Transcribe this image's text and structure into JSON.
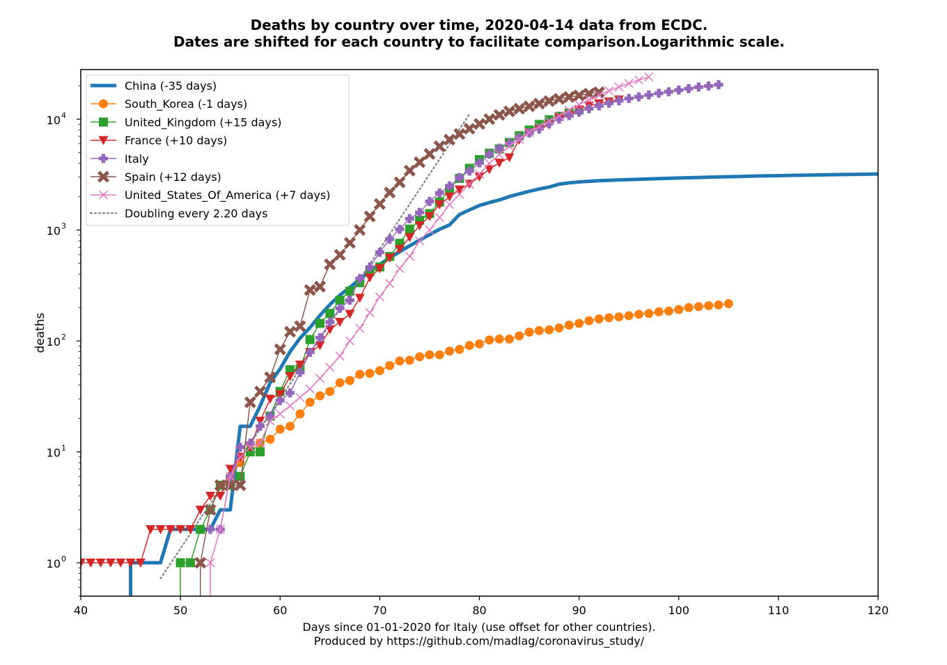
{
  "chart_data": {
    "type": "line",
    "title": "Deaths by country over time, 2020-04-14 data from ECDC.",
    "subtitle": "Dates are shifted for each country to facilitate comparison.Logarithmic scale.",
    "xlabel": "Days since 01-01-2020 for Italy (use offset for other countries).",
    "xlabel_2": "Produced by https://github.com/madlag/coronavirus_study/",
    "ylabel": "deaths",
    "xlim": [
      40,
      120
    ],
    "ylim": [
      0.5,
      28000
    ],
    "yscale": "log",
    "grid": false,
    "legend_position": "upper-left",
    "x_ticks": [
      40,
      50,
      60,
      70,
      80,
      90,
      100,
      110,
      120
    ],
    "y_ticks": [
      {
        "base": "10",
        "exp": "0",
        "value": 1
      },
      {
        "base": "10",
        "exp": "1",
        "value": 10
      },
      {
        "base": "10",
        "exp": "2",
        "value": 100
      },
      {
        "base": "10",
        "exp": "3",
        "value": 1000
      },
      {
        "base": "10",
        "exp": "4",
        "value": 10000
      }
    ],
    "series": [
      {
        "name": "China (-35 days)",
        "color": "#1f77b4",
        "marker": "none",
        "linewidth": 5,
        "x": [
          45,
          45,
          48,
          49,
          53,
          54,
          55,
          56,
          57,
          58,
          59,
          60,
          61,
          62,
          63,
          64,
          65,
          66,
          67,
          68,
          69,
          70,
          71,
          72,
          73,
          74,
          75,
          76,
          77,
          78,
          79,
          80,
          81,
          82,
          83,
          84,
          85,
          86,
          87,
          88,
          89,
          90,
          92,
          94,
          96,
          98,
          100,
          102,
          104,
          106,
          108,
          110,
          112,
          114,
          116,
          118,
          120
        ],
        "y": [
          0.4,
          1,
          1,
          2,
          2,
          3,
          3,
          17,
          17,
          26,
          42,
          56,
          80,
          106,
          132,
          170,
          213,
          259,
          304,
          361,
          425,
          490,
          562,
          637,
          722,
          811,
          908,
          1016,
          1113,
          1380,
          1520,
          1665,
          1770,
          1868,
          2004,
          2118,
          2236,
          2345,
          2442,
          2592,
          2663,
          2715,
          2788,
          2835,
          2870,
          2912,
          2946,
          2981,
          3013,
          3042,
          3070,
          3094,
          3120,
          3140,
          3160,
          3180,
          3200
        ]
      },
      {
        "name": "South_Korea (-1 days)",
        "color": "#ff7f0e",
        "marker": "circle",
        "x": [
          55,
          56,
          57,
          58,
          59,
          60,
          61,
          62,
          63,
          64,
          65,
          66,
          67,
          68,
          69,
          70,
          71,
          72,
          73,
          74,
          75,
          76,
          77,
          78,
          79,
          80,
          81,
          82,
          83,
          84,
          85,
          86,
          87,
          88,
          89,
          90,
          91,
          92,
          93,
          94,
          95,
          96,
          97,
          98,
          99,
          100,
          101,
          102,
          103,
          104,
          105
        ],
        "y": [
          6,
          8,
          10,
          12,
          13,
          16,
          17,
          22,
          28,
          32,
          35,
          42,
          44,
          50,
          51,
          54,
          60,
          66,
          67,
          72,
          75,
          75,
          81,
          84,
          91,
          94,
          102,
          104,
          104,
          111,
          120,
          124,
          126,
          131,
          139,
          144,
          152,
          158,
          162,
          165,
          169,
          174,
          177,
          183,
          186,
          192,
          200,
          204,
          208,
          211,
          217
        ]
      },
      {
        "name": "United_Kingdom (+15 days)",
        "color": "#2ca02c",
        "marker": "square",
        "x": [
          50,
          50,
          51,
          52,
          53,
          54,
          55,
          56,
          57,
          58,
          59,
          60,
          61,
          62,
          63,
          64,
          65,
          66,
          67,
          68,
          69,
          70,
          71,
          72,
          73,
          74,
          75,
          76,
          77,
          78,
          79,
          80,
          81,
          82,
          83,
          84,
          85,
          86,
          87,
          88,
          89,
          90
        ],
        "y": [
          0.4,
          1,
          1,
          2,
          3,
          5,
          5,
          6,
          10,
          10,
          21,
          35,
          55,
          56,
          103,
          144,
          177,
          233,
          281,
          335,
          422,
          465,
          578,
          759,
          1019,
          1228,
          1408,
          1789,
          2352,
          2921,
          3605,
          4313,
          4934,
          5373,
          6159,
          7097,
          7978,
          8958,
          9875,
          10612,
          11329,
          12107
        ]
      },
      {
        "name": "France (+10 days)",
        "color": "#d62728",
        "marker": "triangle-down",
        "x": [
          40,
          41,
          42,
          43,
          44,
          45,
          46,
          47,
          48,
          49,
          50,
          51,
          52,
          53,
          54,
          55,
          56,
          57,
          58,
          59,
          60,
          61,
          62,
          63,
          64,
          65,
          66,
          67,
          68,
          69,
          70,
          71,
          72,
          73,
          74,
          75,
          76,
          77,
          78,
          79,
          80,
          81,
          82,
          83,
          84,
          85,
          86,
          87,
          88,
          89,
          90,
          91,
          92,
          93,
          94
        ],
        "y": [
          1,
          1,
          1,
          1,
          1,
          1,
          1,
          2,
          2,
          2,
          2,
          2,
          3,
          4,
          4,
          7,
          9,
          11,
          19,
          30,
          33,
          48,
          61,
          79,
          91,
          127,
          148,
          175,
          244,
          372,
          450,
          562,
          674,
          860,
          1100,
          1331,
          1696,
          1995,
          2314,
          2606,
          3024,
          3523,
          4032,
          4503,
          6507,
          7560,
          8078,
          8911,
          10328,
          10869,
          12210,
          13197,
          13832,
          14393,
          14986
        ]
      },
      {
        "name": "Italy",
        "color": "#9467bd",
        "marker": "plus",
        "x": [
          53,
          54,
          55,
          56,
          57,
          58,
          59,
          60,
          61,
          62,
          63,
          64,
          65,
          66,
          67,
          68,
          69,
          70,
          71,
          72,
          73,
          74,
          75,
          76,
          77,
          78,
          79,
          80,
          81,
          82,
          83,
          84,
          85,
          86,
          87,
          88,
          89,
          90,
          91,
          92,
          93,
          94,
          95,
          96,
          97,
          98,
          99,
          100,
          101,
          102,
          103,
          104
        ],
        "y": [
          2,
          2,
          6,
          11,
          12,
          17,
          21,
          29,
          34,
          52,
          79,
          107,
          148,
          197,
          233,
          366,
          463,
          631,
          827,
          1016,
          1266,
          1441,
          1809,
          2158,
          2503,
          2978,
          3405,
          4032,
          4825,
          5476,
          6077,
          6820,
          7503,
          8165,
          9134,
          10023,
          10779,
          11591,
          12428,
          13155,
          13915,
          14681,
          15362,
          15887,
          16523,
          17127,
          17669,
          18279,
          18849,
          19468,
          19899,
          20465
        ]
      },
      {
        "name": "Spain (+12 days)",
        "color": "#8c564b",
        "marker": "x-filled",
        "x": [
          52,
          52,
          53,
          54,
          55,
          56,
          57,
          58,
          59,
          60,
          61,
          62,
          63,
          64,
          65,
          66,
          67,
          68,
          69,
          70,
          71,
          72,
          73,
          74,
          75,
          76,
          77,
          78,
          79,
          80,
          81,
          82,
          83,
          84,
          85,
          86,
          87,
          88,
          89,
          90,
          91,
          92
        ],
        "y": [
          0.4,
          1,
          3,
          5,
          5,
          5,
          28,
          35,
          47,
          84,
          121,
          136,
          288,
          309,
          491,
          598,
          767,
          1002,
          1326,
          1720,
          2182,
          2696,
          3434,
          4089,
          4858,
          5690,
          6528,
          7340,
          8189,
          9053,
          10003,
          10935,
          11744,
          12418,
          13055,
          13798,
          14555,
          15238,
          15843,
          16353,
          16972,
          17489
        ]
      },
      {
        "name": "United_States_Of_America (+7 days)",
        "color": "#e377c2",
        "marker": "x",
        "x": [
          53,
          53,
          54,
          55,
          56,
          57,
          58,
          59,
          60,
          61,
          62,
          63,
          64,
          65,
          66,
          67,
          68,
          69,
          70,
          71,
          72,
          73,
          74,
          75,
          76,
          77,
          78,
          79,
          80,
          81,
          82,
          83,
          84,
          85,
          86,
          87,
          88,
          89,
          90,
          91,
          92,
          93,
          94,
          95,
          96,
          97
        ],
        "y": [
          0.4,
          1,
          2,
          6,
          9,
          11,
          12,
          19,
          22,
          26,
          31,
          37,
          46,
          58,
          73,
          100,
          130,
          180,
          250,
          330,
          450,
          580,
          800,
          1000,
          1300,
          1700,
          2100,
          2600,
          3200,
          4000,
          4800,
          5700,
          6600,
          7600,
          8600,
          9600,
          10700,
          12000,
          13500,
          15000,
          16500,
          18000,
          19500,
          21000,
          22500,
          24000
        ]
      },
      {
        "name": "Doubling every 2.20 days",
        "color": "#7f7f7f",
        "marker": "none",
        "linestyle": "dotted",
        "x": [
          48,
          79
        ],
        "y": [
          0.72,
          11066
        ]
      }
    ]
  }
}
